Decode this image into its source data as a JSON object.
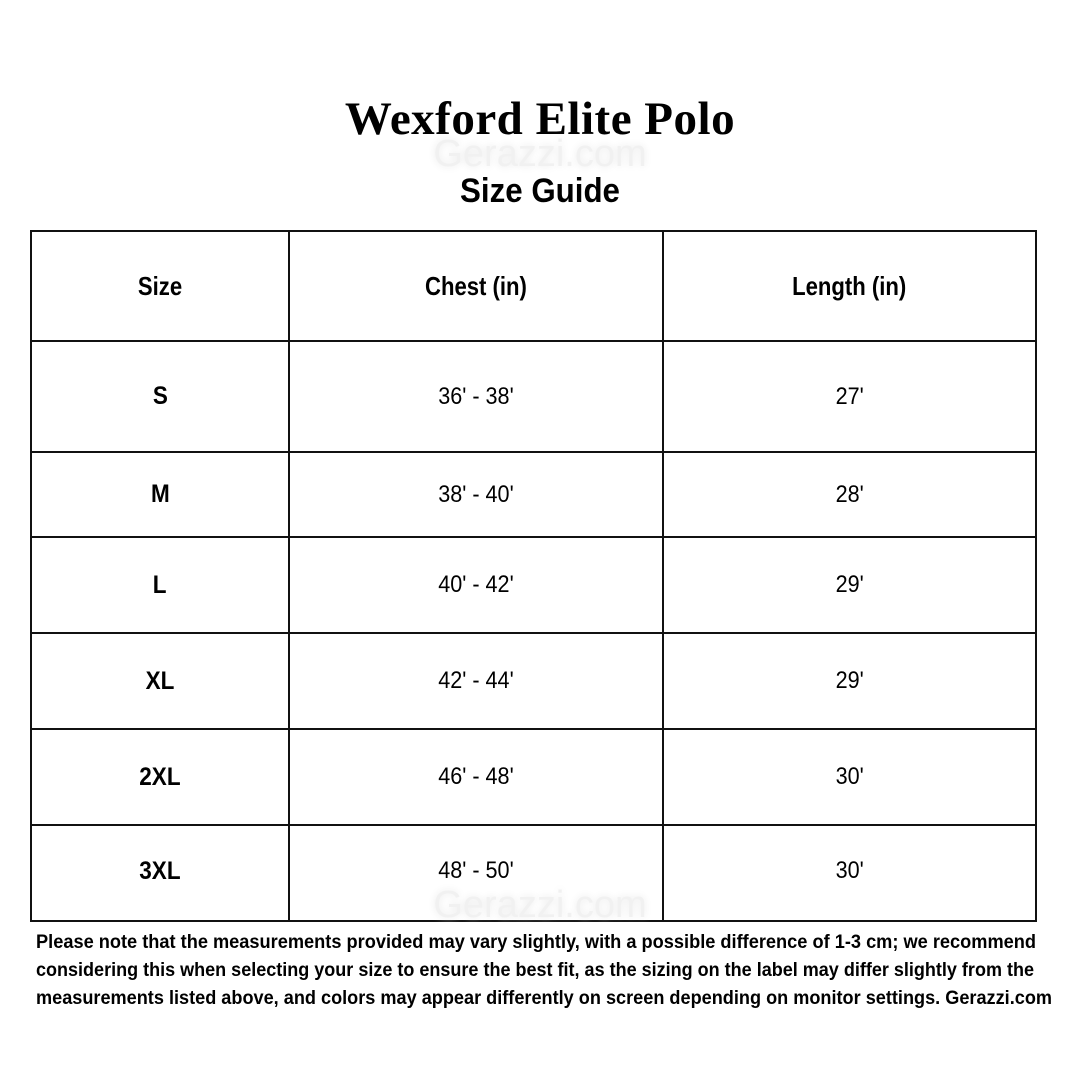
{
  "title": "Wexford Elite Polo",
  "subtitle": "Size Guide",
  "watermark": "Gerazzi.com",
  "table": {
    "headers": [
      "Size",
      "Chest (in)",
      "Length (in)"
    ],
    "rows": [
      {
        "size": "S",
        "chest": "36' - 38'",
        "length": "27'"
      },
      {
        "size": "M",
        "chest": "38' - 40'",
        "length": "28'"
      },
      {
        "size": "L",
        "chest": "40' - 42'",
        "length": "29'"
      },
      {
        "size": "XL",
        "chest": "42' - 44'",
        "length": "29'"
      },
      {
        "size": "2XL",
        "chest": "46' - 48'",
        "length": "30'"
      },
      {
        "size": "3XL",
        "chest": "48' - 50'",
        "length": "30'"
      }
    ]
  },
  "note": {
    "lines": [
      "Please note that the measurements provided may vary slightly, with a possible difference of 1-3 cm; we recommend",
      "considering this when selecting your size to ensure the best fit, as the sizing on the label may differ slightly from the",
      "measurements listed above, and colors may appear differently on screen depending on monitor settings. Gerazzi.com"
    ]
  }
}
